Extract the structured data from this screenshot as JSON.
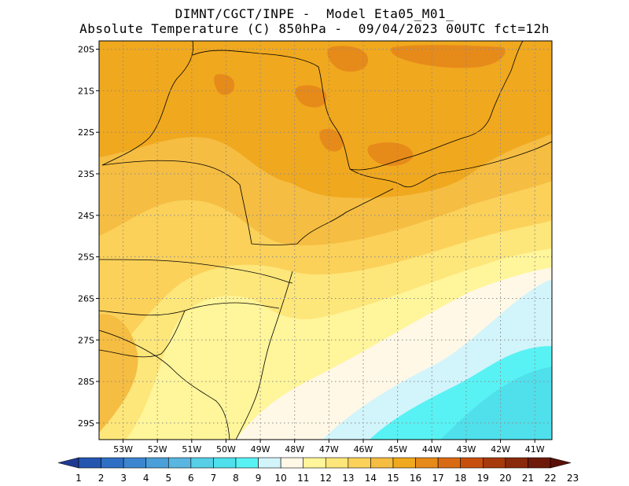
{
  "header": {
    "line1": "DIMNT/CGCT/INPE -  Model Eta05_M01_",
    "line2": "Absolute Temperature (C) 850hPa -  09/04/2023 00UTC fct=12h"
  },
  "map": {
    "lat_ticks": [
      "20S",
      "21S",
      "22S",
      "23S",
      "24S",
      "25S",
      "26S",
      "27S",
      "28S",
      "29S"
    ],
    "lon_ticks": [
      "53W",
      "52W",
      "51W",
      "50W",
      "49W",
      "48W",
      "47W",
      "46W",
      "45W",
      "44W",
      "43W",
      "42W",
      "41W"
    ],
    "lon_range": [
      -53.7,
      -40.5
    ],
    "lat_range": [
      -19.8,
      -29.4
    ],
    "grid": "dotted"
  },
  "colorbar": {
    "labels": [
      "1",
      "2",
      "3",
      "4",
      "5",
      "6",
      "7",
      "8",
      "9",
      "10",
      "11",
      "12",
      "13",
      "14",
      "15",
      "16",
      "17",
      "18",
      "19",
      "20",
      "21",
      "22",
      "23"
    ],
    "colors": [
      "#1f3a93",
      "#2456b0",
      "#2f6fc4",
      "#3c86cf",
      "#4a9fd8",
      "#59b6e0",
      "#57cfe6",
      "#4fe0ec",
      "#58f2f4",
      "#d2f4fb",
      "#fff8e6",
      "#fff59a",
      "#fde67a",
      "#fbd15a",
      "#f5bd42",
      "#f0a81e",
      "#e68a1a",
      "#d96a14",
      "#c8500f",
      "#a63a0c",
      "#8a2a0c",
      "#6e1a0a",
      "#5a1008"
    ]
  },
  "legend_colors": {
    "t11": "#fff8e6",
    "t12": "#fff59a",
    "t13": "#fde67a",
    "t14": "#fbd15a",
    "t15": "#f5bd42",
    "t16": "#f0a81e",
    "t17": "#e68a1a",
    "t18": "#d96a14",
    "t10": "#d2f4fb",
    "t9": "#58f2f4",
    "t8": "#4fe0ec"
  }
}
